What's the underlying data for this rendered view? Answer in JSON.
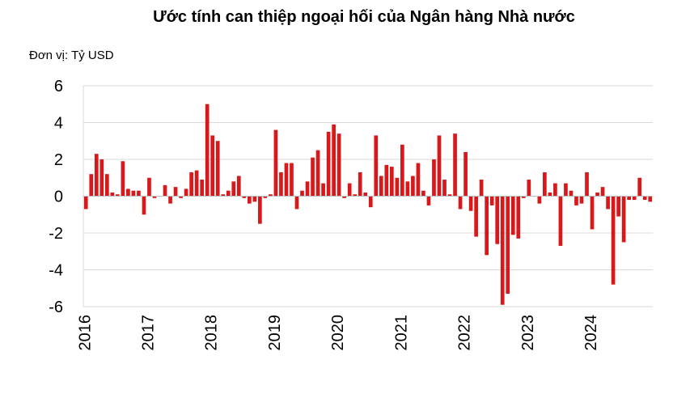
{
  "chart_data": {
    "type": "bar",
    "title": "Ước tính can thiệp ngoại hối của Ngân hàng Nhà nước",
    "unit_label": "Đơn vị: Tỷ USD",
    "xlabel": "",
    "ylabel": "",
    "ylim": [
      -6,
      6
    ],
    "yticks": [
      "6",
      "4",
      "2",
      "0",
      "-2",
      "-4",
      "-6"
    ],
    "ytick_values": [
      6,
      4,
      2,
      0,
      -2,
      -4,
      -6
    ],
    "x_tick_labels": [
      "2016",
      "2017",
      "2018",
      "2019",
      "2020",
      "2021",
      "2022",
      "2023",
      "2024"
    ],
    "grid": true,
    "bar_color": "#d7191c",
    "frequency": "monthly",
    "start": "2016-01",
    "end": "2024-12",
    "values": [
      -0.7,
      1.2,
      2.3,
      2.0,
      1.2,
      0.2,
      0.1,
      1.9,
      0.4,
      0.3,
      0.3,
      -1.0,
      1.0,
      -0.1,
      0.0,
      0.6,
      -0.4,
      0.5,
      -0.1,
      0.4,
      1.3,
      1.4,
      0.9,
      5.0,
      3.3,
      3.0,
      0.1,
      0.3,
      0.8,
      1.1,
      -0.1,
      -0.4,
      -0.3,
      -1.5,
      -0.1,
      0.1,
      3.6,
      1.3,
      1.8,
      1.8,
      -0.7,
      0.3,
      0.8,
      2.1,
      2.5,
      0.7,
      3.5,
      3.9,
      3.4,
      -0.1,
      0.7,
      0.1,
      1.3,
      0.2,
      -0.6,
      3.3,
      1.1,
      1.7,
      1.6,
      1.0,
      2.8,
      0.8,
      1.1,
      1.8,
      0.3,
      -0.5,
      2.0,
      3.3,
      0.9,
      0.1,
      3.4,
      -0.7,
      2.4,
      -0.8,
      -2.2,
      0.9,
      -3.2,
      -0.5,
      -2.6,
      -5.9,
      -5.3,
      -2.1,
      -2.3,
      -0.1,
      0.9,
      0.0,
      -0.4,
      1.3,
      0.2,
      0.7,
      -2.7,
      0.7,
      0.3,
      -0.5,
      -0.4,
      1.3,
      -1.8,
      0.2,
      0.5,
      -0.7,
      -4.8,
      -1.1,
      -2.5,
      -0.2,
      -0.2,
      1.0,
      -0.2,
      -0.3
    ]
  }
}
